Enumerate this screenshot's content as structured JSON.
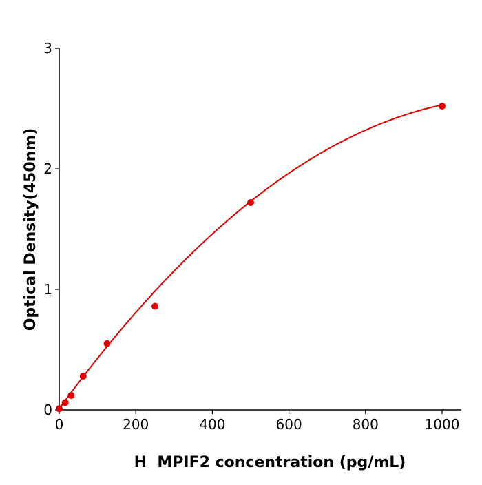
{
  "chart_data": {
    "type": "scatter",
    "title": "",
    "xlabel": "H  MPIF2 concentration (pg/mL)",
    "ylabel": "Optical Density(450nm)",
    "xlim": [
      0,
      1050
    ],
    "ylim": [
      0,
      3
    ],
    "xticks": [
      0,
      200,
      400,
      600,
      800,
      1000
    ],
    "yticks": [
      0,
      1,
      2,
      3
    ],
    "grid": false,
    "color": "#e00000",
    "fit_line": true,
    "series": [
      {
        "x": [
          0,
          15.6,
          31.25,
          62.5,
          125,
          250,
          500,
          1000
        ],
        "y": [
          0.01,
          0.06,
          0.12,
          0.28,
          0.55,
          0.86,
          1.72,
          2.52
        ]
      }
    ]
  }
}
